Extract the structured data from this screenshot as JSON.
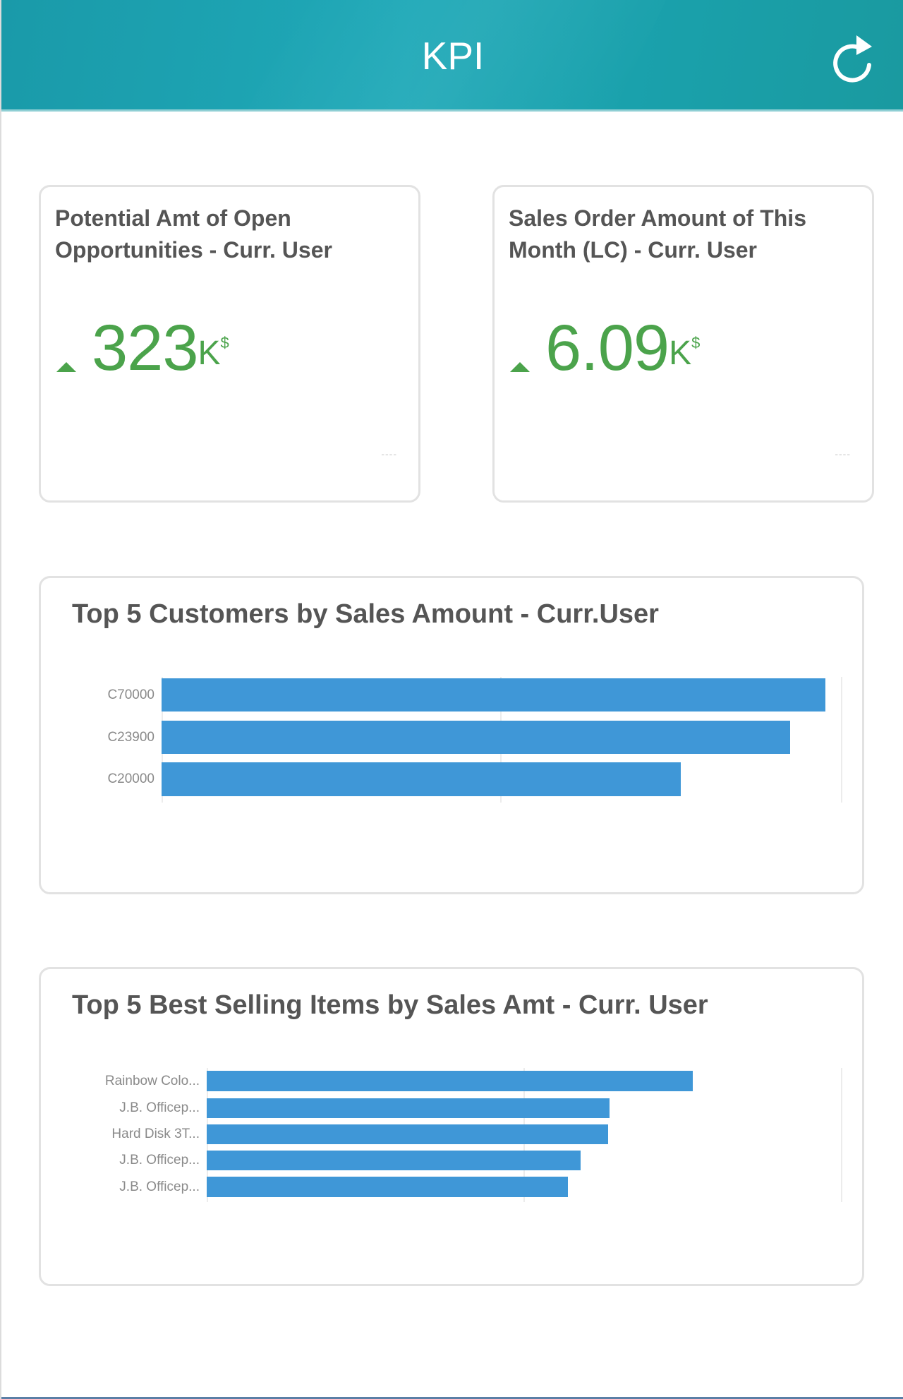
{
  "header": {
    "title": "KPI",
    "refresh_icon": "refresh-icon",
    "gradient_colors": [
      "#1a9aa9",
      "#1fa9b8",
      "#1a9aa0"
    ]
  },
  "kpi_cards": [
    {
      "title": "Potential Amt of Open Opportunities - Curr. User",
      "trend_icon": "triangle-up-icon",
      "value": "323",
      "unit": "K",
      "currency": "$",
      "footer": "----",
      "value_color": "#4ba34b"
    },
    {
      "title": "Sales Order Amount of This Month (LC) - Curr. User",
      "trend_icon": "triangle-up-icon",
      "value": "6.09",
      "unit": "K",
      "currency": "$",
      "footer": "----",
      "value_color": "#4ba34b"
    }
  ],
  "chart_data": [
    {
      "type": "bar",
      "orientation": "horizontal",
      "title": "Top 5 Customers by Sales Amount - Curr.User",
      "categories": [
        "C70000",
        "C23900",
        "C20000"
      ],
      "values": [
        97.5,
        92.3,
        76.3
      ],
      "value_scale": "relative (% of axis max); no axis tick labels shown",
      "xlabel": "",
      "ylabel": "",
      "xlim": [
        0,
        100
      ],
      "grid": true,
      "gridlines_at": [
        0,
        50,
        100
      ],
      "legend": false,
      "bar_color": "#3f97d7"
    },
    {
      "type": "bar",
      "orientation": "horizontal",
      "title": "Top 5 Best Selling Items by Sales Amt - Curr. User",
      "categories": [
        "Rainbow Colo...",
        "J.B. Officep...",
        "Hard Disk 3T...",
        "J.B. Officep...",
        "J.B. Officep..."
      ],
      "values": [
        76.5,
        63.4,
        63.1,
        58.8,
        56.8
      ],
      "value_scale": "relative (% of axis max); no axis tick labels shown",
      "xlabel": "",
      "ylabel": "",
      "xlim": [
        0,
        100
      ],
      "grid": true,
      "gridlines_at": [
        0,
        50,
        100
      ],
      "legend": false,
      "bar_color": "#3f97d7"
    }
  ]
}
